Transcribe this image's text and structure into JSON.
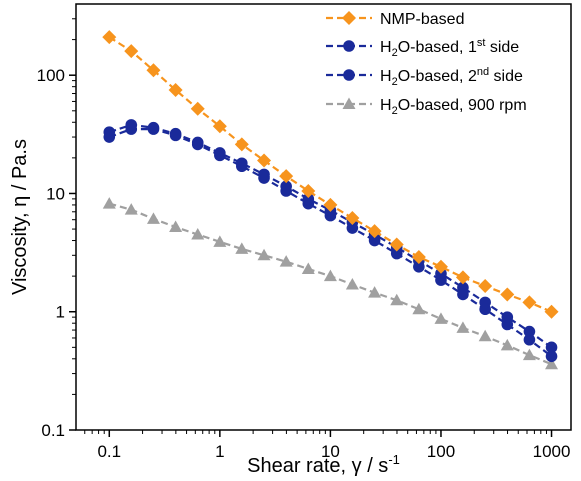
{
  "chart_data": {
    "type": "line",
    "xscale": "log",
    "yscale": "log",
    "xlim": [
      0.05,
      1500
    ],
    "ylim": [
      0.1,
      400
    ],
    "xlabel_parts": [
      "Shear rate, ",
      "γ",
      " / s",
      "-1"
    ],
    "ylabel": "Viscosity, η / Pa.s",
    "x_ticks": [
      0.1,
      1,
      10,
      100,
      1000
    ],
    "x_tick_labels": [
      "0.1",
      "1",
      "10",
      "100",
      "1000"
    ],
    "y_ticks": [
      0.1,
      1,
      10,
      100
    ],
    "y_tick_labels": [
      "0.1",
      "1",
      "10",
      "100"
    ],
    "grid": false,
    "legend_position": "top-right",
    "x": [
      0.1,
      0.158,
      0.251,
      0.398,
      0.631,
      1,
      1.58,
      2.51,
      3.98,
      6.31,
      10,
      15.8,
      25.1,
      39.8,
      63.1,
      100,
      158,
      251,
      398,
      631,
      1000
    ],
    "series": [
      {
        "name_parts": [
          "NMP-based",
          "",
          ""
        ],
        "color": "#F7941D",
        "marker": "diamond",
        "values": [
          210,
          160,
          110,
          75,
          52,
          37,
          26,
          19,
          14,
          10.5,
          8.0,
          6.2,
          4.8,
          3.7,
          2.9,
          2.4,
          1.95,
          1.65,
          1.4,
          1.2,
          1.0
        ]
      },
      {
        "name_parts": [
          "H",
          "2",
          "O-based, 1",
          "st",
          " side"
        ],
        "color": "#1A2A9A",
        "marker": "circle",
        "values": [
          33,
          38,
          36,
          32,
          27,
          22,
          18,
          14.5,
          11.5,
          9.0,
          7.2,
          5.7,
          4.5,
          3.5,
          2.7,
          2.1,
          1.6,
          1.2,
          0.9,
          0.68,
          0.5
        ]
      },
      {
        "name_parts": [
          "H",
          "2",
          "O-based, 2",
          "nd",
          " side"
        ],
        "color": "#1A2A9A",
        "marker": "circle",
        "values": [
          30,
          35,
          35,
          31,
          26,
          21,
          17,
          13.5,
          10.5,
          8.2,
          6.5,
          5.1,
          4.0,
          3.1,
          2.4,
          1.85,
          1.4,
          1.05,
          0.78,
          0.58,
          0.42
        ]
      },
      {
        "name_parts": [
          "H",
          "2",
          "O-based, 900 rpm"
        ],
        "color": "#A0A0A0",
        "marker": "triangle",
        "values": [
          8.2,
          7.3,
          6.1,
          5.2,
          4.5,
          3.9,
          3.4,
          3.0,
          2.65,
          2.3,
          2.0,
          1.7,
          1.45,
          1.25,
          1.05,
          0.87,
          0.73,
          0.62,
          0.52,
          0.43,
          0.36
        ]
      }
    ]
  }
}
